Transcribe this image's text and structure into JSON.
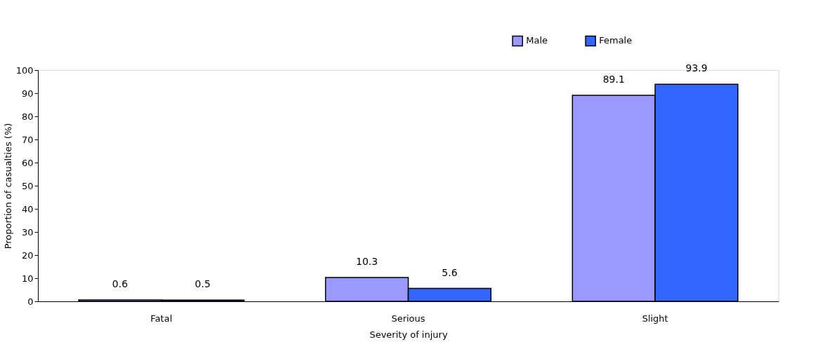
{
  "chart_data": {
    "type": "bar",
    "xlabel": "Severity of injury",
    "ylabel": "Proportion of casualties (%)",
    "categories": [
      "Fatal",
      "Serious",
      "Slight"
    ],
    "series": [
      {
        "name": "Male",
        "color": "#9999ff",
        "values": [
          0.6,
          10.3,
          89.1
        ]
      },
      {
        "name": "Female",
        "color": "#3366ff",
        "values": [
          0.5,
          5.6,
          93.9
        ]
      }
    ],
    "ylim": [
      0,
      100
    ],
    "yticks": [
      0,
      10,
      20,
      30,
      40,
      50,
      60,
      70,
      80,
      90,
      100
    ],
    "data_labels": true,
    "grid": false,
    "legend": "top right"
  }
}
